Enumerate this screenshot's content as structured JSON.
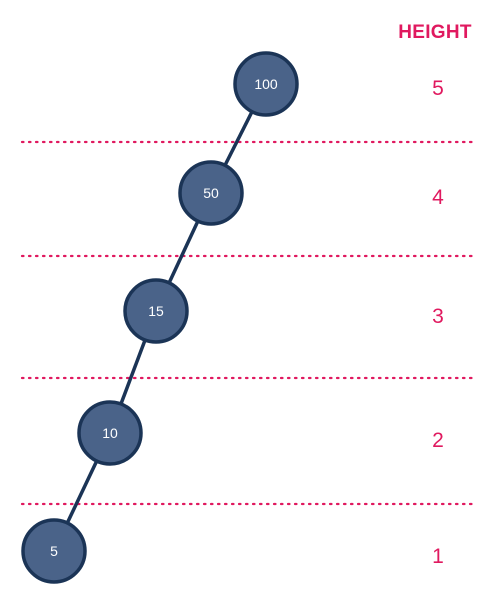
{
  "diagram": {
    "height_header": "HEIGHT",
    "colors": {
      "accent": "#e0195f",
      "node_fill": "#4a6389",
      "node_stroke": "#1b3456",
      "edge": "#1b3456",
      "node_text": "#ffffff"
    },
    "nodes": [
      {
        "value": "100",
        "height": "5"
      },
      {
        "value": "50",
        "height": "4"
      },
      {
        "value": "15",
        "height": "3"
      },
      {
        "value": "10",
        "height": "2"
      },
      {
        "value": "5",
        "height": "1"
      }
    ],
    "edges": [
      {
        "from": "100",
        "to": "50"
      },
      {
        "from": "50",
        "to": "15"
      },
      {
        "from": "15",
        "to": "10"
      },
      {
        "from": "10",
        "to": "5"
      }
    ]
  }
}
